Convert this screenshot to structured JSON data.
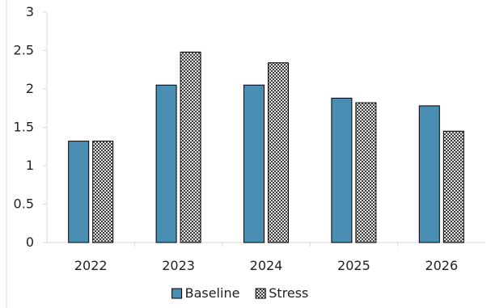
{
  "chart_data": {
    "type": "bar",
    "categories": [
      "2022",
      "2023",
      "2024",
      "2025",
      "2026"
    ],
    "series": [
      {
        "name": "Baseline",
        "values": [
          1.32,
          2.05,
          2.05,
          1.88,
          1.78
        ],
        "color": "#4a8fb3",
        "pattern": "solid"
      },
      {
        "name": "Stress",
        "values": [
          1.32,
          2.48,
          2.34,
          1.82,
          1.45
        ],
        "color": "#000000",
        "pattern": "crosshatch"
      }
    ],
    "ylim": [
      0,
      3
    ],
    "yticks": [
      "0",
      "0.5",
      "1",
      "1.5",
      "2",
      "2.5",
      "3"
    ],
    "title": "",
    "xlabel": "",
    "ylabel": "",
    "grid": false,
    "legend": "bottom-center",
    "colors": {
      "axis": "#d9d9d9",
      "bar_outline": "#000000",
      "text": "#222222"
    }
  }
}
